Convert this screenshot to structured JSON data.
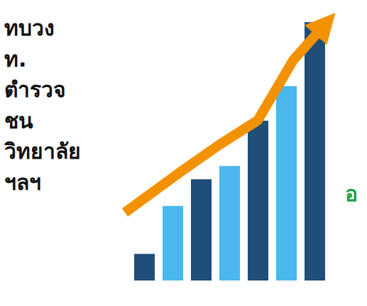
{
  "chart_data": {
    "type": "bar",
    "categories": [
      null,
      null,
      null,
      null,
      null,
      null,
      null
    ],
    "values": [
      10,
      28,
      38,
      43,
      60,
      73,
      97
    ],
    "colors": [
      "#1f4e79",
      "#4ab8ee",
      "#1f4e79",
      "#4ab8ee",
      "#1f4e79",
      "#4ab8ee",
      "#1f4e79"
    ],
    "ylim": [
      0,
      100
    ],
    "tick_labels": false,
    "grid": false,
    "annotations": [
      {
        "text": "ทบวง"
      },
      {
        "text": "ท."
      },
      {
        "text": "ตำรวจ"
      },
      {
        "text": "ชน"
      },
      {
        "text": "วิทยาลัย"
      },
      {
        "text": "ฯลฯ"
      },
      {
        "text": "อ",
        "color": "#1aa34a"
      }
    ]
  }
}
